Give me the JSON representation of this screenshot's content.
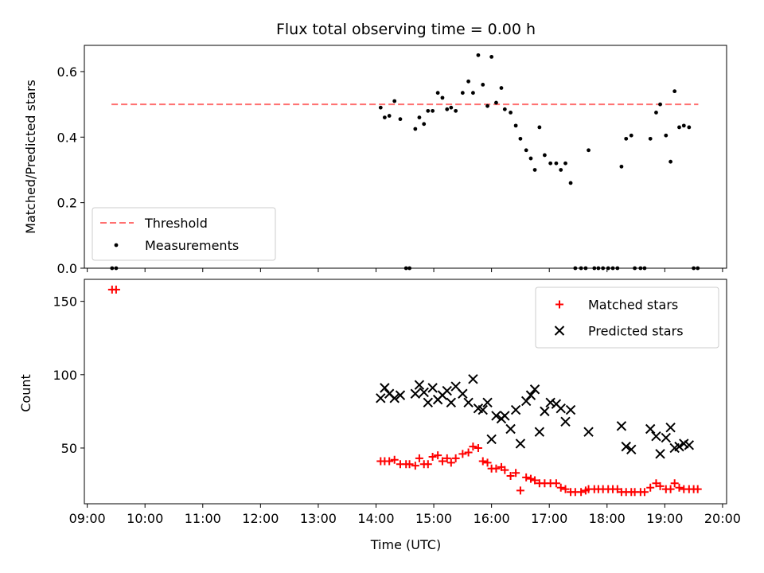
{
  "chart_data": [
    {
      "type": "scatter",
      "title": "Flux total observing time = 0.00 h",
      "ylabel": "Matched/Predicted stars",
      "xlabel": "",
      "x_ticks": [
        "09:00",
        "10:00",
        "11:00",
        "12:00",
        "13:00",
        "14:00",
        "15:00",
        "16:00",
        "17:00",
        "18:00",
        "19:00",
        "20:00"
      ],
      "xlim": [
        8.95,
        20.07
      ],
      "ylim": [
        0,
        0.68
      ],
      "y_ticks": [
        0.0,
        0.2,
        0.4,
        0.6
      ],
      "legend_position": "lower-left",
      "series": [
        {
          "name": "Threshold",
          "style": "dashed-line",
          "color": "#ff7070",
          "x": [
            9.42,
            19.58
          ],
          "y": [
            0.5,
            0.5
          ]
        },
        {
          "name": "Measurements",
          "style": "dot",
          "color": "#000000",
          "points": [
            [
              9.43,
              0
            ],
            [
              9.5,
              0
            ],
            [
              14.08,
              0.49
            ],
            [
              14.15,
              0.46
            ],
            [
              14.23,
              0.465
            ],
            [
              14.32,
              0.51
            ],
            [
              14.42,
              0.455
            ],
            [
              14.52,
              0
            ],
            [
              14.58,
              0
            ],
            [
              14.68,
              0.425
            ],
            [
              14.75,
              0.46
            ],
            [
              14.83,
              0.44
            ],
            [
              14.9,
              0.48
            ],
            [
              14.98,
              0.48
            ],
            [
              15.07,
              0.535
            ],
            [
              15.15,
              0.52
            ],
            [
              15.23,
              0.485
            ],
            [
              15.3,
              0.49
            ],
            [
              15.38,
              0.48
            ],
            [
              15.5,
              0.535
            ],
            [
              15.6,
              0.57
            ],
            [
              15.68,
              0.535
            ],
            [
              15.77,
              0.65
            ],
            [
              15.85,
              0.56
            ],
            [
              15.93,
              0.495
            ],
            [
              16.0,
              0.645
            ],
            [
              16.08,
              0.505
            ],
            [
              16.17,
              0.55
            ],
            [
              16.23,
              0.485
            ],
            [
              16.33,
              0.475
            ],
            [
              16.42,
              0.435
            ],
            [
              16.5,
              0.395
            ],
            [
              16.6,
              0.36
            ],
            [
              16.68,
              0.335
            ],
            [
              16.75,
              0.3
            ],
            [
              16.83,
              0.43
            ],
            [
              16.92,
              0.345
            ],
            [
              17.02,
              0.32
            ],
            [
              17.12,
              0.32
            ],
            [
              17.2,
              0.3
            ],
            [
              17.28,
              0.32
            ],
            [
              17.37,
              0.26
            ],
            [
              17.45,
              0
            ],
            [
              17.55,
              0
            ],
            [
              17.63,
              0
            ],
            [
              17.68,
              0.36
            ],
            [
              17.78,
              0
            ],
            [
              17.85,
              0
            ],
            [
              17.93,
              0
            ],
            [
              18.02,
              0
            ],
            [
              18.1,
              0
            ],
            [
              18.18,
              0
            ],
            [
              18.25,
              0.31
            ],
            [
              18.33,
              0.395
            ],
            [
              18.42,
              0.405
            ],
            [
              18.48,
              0
            ],
            [
              18.58,
              0
            ],
            [
              18.65,
              0
            ],
            [
              18.75,
              0.395
            ],
            [
              18.85,
              0.475
            ],
            [
              18.92,
              0.5
            ],
            [
              19.02,
              0.405
            ],
            [
              19.1,
              0.325
            ],
            [
              19.17,
              0.54
            ],
            [
              19.25,
              0.43
            ],
            [
              19.33,
              0.435
            ],
            [
              19.42,
              0.43
            ],
            [
              19.5,
              0
            ],
            [
              19.57,
              0
            ]
          ]
        }
      ]
    },
    {
      "type": "scatter",
      "title": "",
      "xlabel": "Time (UTC)",
      "ylabel": "Count",
      "x_ticks": [
        "09:00",
        "10:00",
        "11:00",
        "12:00",
        "13:00",
        "14:00",
        "15:00",
        "16:00",
        "17:00",
        "18:00",
        "19:00",
        "20:00"
      ],
      "xlim": [
        8.95,
        20.07
      ],
      "ylim": [
        12,
        165
      ],
      "y_ticks": [
        50,
        100,
        150
      ],
      "legend_position": "upper-right",
      "series": [
        {
          "name": "Matched stars",
          "style": "plus",
          "color": "#ff0000",
          "points": [
            [
              9.43,
              158
            ],
            [
              9.5,
              158
            ],
            [
              14.08,
              41
            ],
            [
              14.15,
              41
            ],
            [
              14.23,
              41
            ],
            [
              14.32,
              42
            ],
            [
              14.42,
              39
            ],
            [
              14.52,
              39
            ],
            [
              14.58,
              39
            ],
            [
              14.68,
              38
            ],
            [
              14.75,
              43
            ],
            [
              14.83,
              39
            ],
            [
              14.9,
              39
            ],
            [
              14.98,
              44
            ],
            [
              15.07,
              45
            ],
            [
              15.15,
              41
            ],
            [
              15.23,
              43
            ],
            [
              15.3,
              40
            ],
            [
              15.38,
              43
            ],
            [
              15.5,
              46
            ],
            [
              15.6,
              47
            ],
            [
              15.68,
              51
            ],
            [
              15.77,
              50
            ],
            [
              15.85,
              41
            ],
            [
              15.93,
              40
            ],
            [
              16.0,
              36
            ],
            [
              16.08,
              36
            ],
            [
              16.17,
              37
            ],
            [
              16.23,
              35
            ],
            [
              16.33,
              31
            ],
            [
              16.42,
              33
            ],
            [
              16.5,
              21
            ],
            [
              16.6,
              30
            ],
            [
              16.68,
              29
            ],
            [
              16.75,
              28
            ],
            [
              16.83,
              26
            ],
            [
              16.92,
              26
            ],
            [
              17.02,
              26
            ],
            [
              17.12,
              26
            ],
            [
              17.2,
              23
            ],
            [
              17.28,
              22
            ],
            [
              17.37,
              20
            ],
            [
              17.45,
              20
            ],
            [
              17.55,
              20
            ],
            [
              17.63,
              21
            ],
            [
              17.68,
              22
            ],
            [
              17.78,
              22
            ],
            [
              17.85,
              22
            ],
            [
              17.93,
              22
            ],
            [
              18.02,
              22
            ],
            [
              18.1,
              22
            ],
            [
              18.18,
              22
            ],
            [
              18.25,
              20
            ],
            [
              18.33,
              20
            ],
            [
              18.42,
              20
            ],
            [
              18.48,
              20
            ],
            [
              18.58,
              20
            ],
            [
              18.65,
              20
            ],
            [
              18.75,
              23
            ],
            [
              18.85,
              26
            ],
            [
              18.92,
              24
            ],
            [
              19.02,
              22
            ],
            [
              19.1,
              22
            ],
            [
              19.17,
              26
            ],
            [
              19.25,
              23
            ],
            [
              19.33,
              22
            ],
            [
              19.42,
              22
            ],
            [
              19.5,
              22
            ],
            [
              19.57,
              22
            ]
          ]
        },
        {
          "name": "Predicted stars",
          "style": "x",
          "color": "#000000",
          "points": [
            [
              14.08,
              84
            ],
            [
              14.15,
              91
            ],
            [
              14.23,
              87
            ],
            [
              14.32,
              84
            ],
            [
              14.42,
              86
            ],
            [
              14.68,
              87
            ],
            [
              14.75,
              93
            ],
            [
              14.83,
              88
            ],
            [
              14.9,
              81
            ],
            [
              14.98,
              91
            ],
            [
              15.07,
              83
            ],
            [
              15.15,
              86
            ],
            [
              15.23,
              89
            ],
            [
              15.3,
              81
            ],
            [
              15.38,
              92
            ],
            [
              15.5,
              87
            ],
            [
              15.6,
              81
            ],
            [
              15.68,
              97
            ],
            [
              15.77,
              77
            ],
            [
              15.85,
              76
            ],
            [
              15.93,
              81
            ],
            [
              16.0,
              56
            ],
            [
              16.08,
              72
            ],
            [
              16.17,
              70
            ],
            [
              16.23,
              72
            ],
            [
              16.33,
              63
            ],
            [
              16.42,
              76
            ],
            [
              16.5,
              53
            ],
            [
              16.6,
              82
            ],
            [
              16.68,
              86
            ],
            [
              16.75,
              90
            ],
            [
              16.83,
              61
            ],
            [
              16.92,
              75
            ],
            [
              17.02,
              81
            ],
            [
              17.12,
              80
            ],
            [
              17.2,
              77
            ],
            [
              17.28,
              68
            ],
            [
              17.37,
              76
            ],
            [
              17.68,
              61
            ],
            [
              18.25,
              65
            ],
            [
              18.33,
              51
            ],
            [
              18.42,
              49
            ],
            [
              18.75,
              63
            ],
            [
              18.85,
              58
            ],
            [
              18.92,
              46
            ],
            [
              19.02,
              57
            ],
            [
              19.1,
              64
            ],
            [
              19.17,
              50
            ],
            [
              19.25,
              51
            ],
            [
              19.33,
              53
            ],
            [
              19.42,
              52
            ]
          ]
        }
      ]
    }
  ]
}
